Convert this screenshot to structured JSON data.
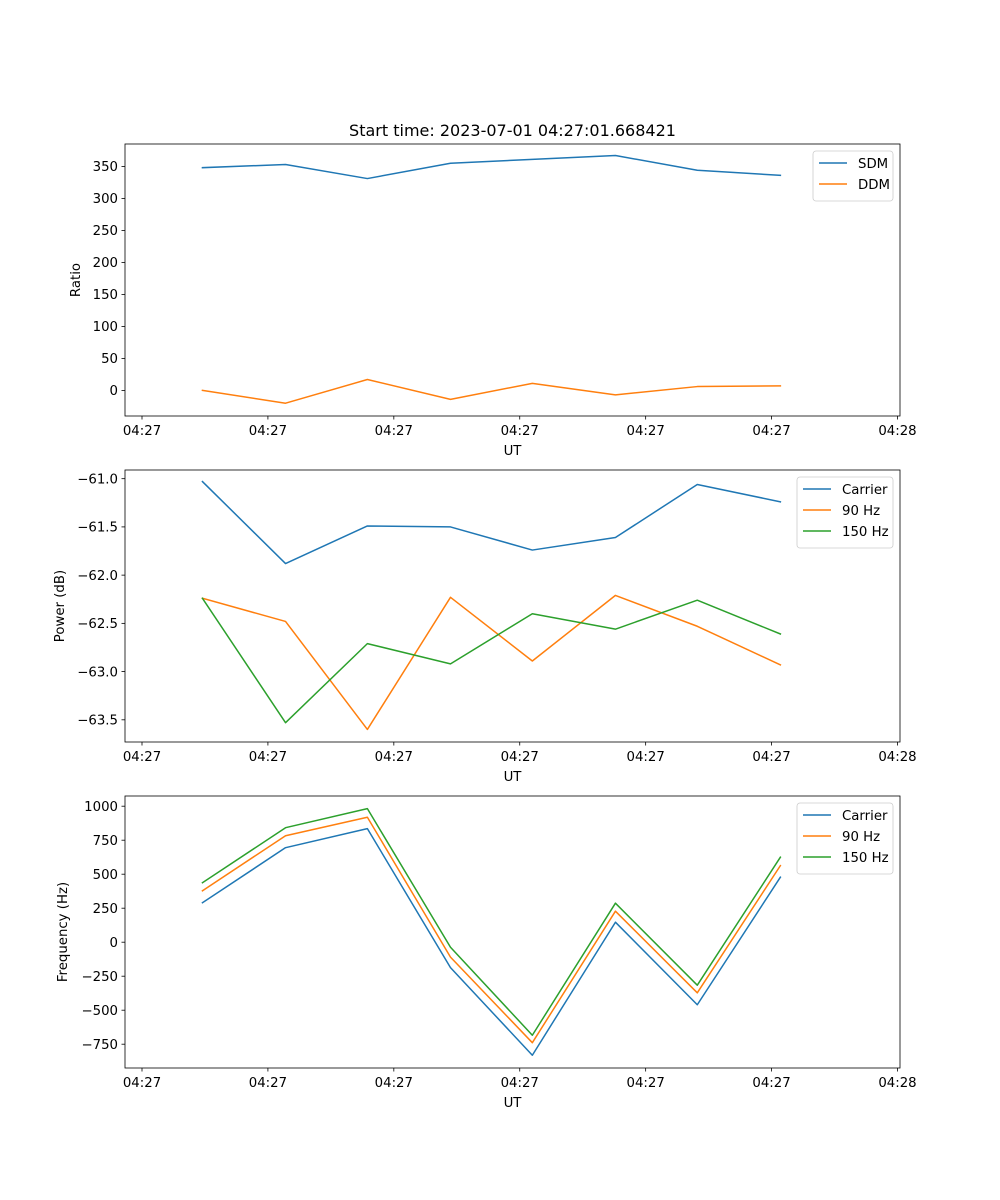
{
  "figure": {
    "title": "Start time: 2023-07-01 04:27:01.668421"
  },
  "colors": {
    "blue": "#1f77b4",
    "orange": "#ff7f0e",
    "green": "#2ca02c"
  },
  "chart_data": [
    {
      "type": "line",
      "title": "Start time: 2023-07-01 04:27:01.668421",
      "xlabel": "UT",
      "ylabel": "Ratio",
      "x_unit": "seconds after 04:27:00 (estimated)",
      "x": [
        4.8,
        11.4,
        17.9,
        24.5,
        31.0,
        37.6,
        44.1,
        50.7
      ],
      "xlim": [
        -1.35,
        60.2
      ],
      "xticks": [
        0,
        10,
        20,
        30,
        40,
        50,
        60
      ],
      "xtick_labels": [
        "04:27",
        "04:27",
        "04:27",
        "04:27",
        "04:27",
        "04:27",
        "04:28"
      ],
      "ylim": [
        -40,
        385
      ],
      "yticks": [
        0,
        50,
        100,
        150,
        200,
        250,
        300,
        350
      ],
      "ytick_labels": [
        "0",
        "50",
        "100",
        "150",
        "200",
        "250",
        "300",
        "350"
      ],
      "grid": false,
      "legend": "top-right",
      "series": [
        {
          "name": "SDM",
          "color": "#1f77b4",
          "values": [
            348,
            353,
            331,
            355,
            361,
            367,
            344,
            336
          ]
        },
        {
          "name": "DDM",
          "color": "#ff7f0e",
          "values": [
            0,
            -20,
            17,
            -14,
            11,
            -7,
            6,
            7
          ]
        }
      ]
    },
    {
      "type": "line",
      "title": "",
      "xlabel": "UT",
      "ylabel": "Power (dB)",
      "x_unit": "seconds after 04:27:00 (estimated)",
      "x": [
        4.8,
        11.4,
        17.9,
        24.5,
        31.0,
        37.6,
        44.1,
        50.7
      ],
      "xlim": [
        -1.35,
        60.2
      ],
      "xticks": [
        0,
        10,
        20,
        30,
        40,
        50,
        60
      ],
      "xtick_labels": [
        "04:27",
        "04:27",
        "04:27",
        "04:27",
        "04:27",
        "04:27",
        "04:28"
      ],
      "ylim": [
        -63.73,
        -60.91
      ],
      "yticks": [
        -61.0,
        -61.5,
        -62.0,
        -62.5,
        -63.0,
        -63.5
      ],
      "ytick_labels": [
        "−61.0",
        "−61.5",
        "−62.0",
        "−62.5",
        "−63.0",
        "−63.5"
      ],
      "grid": false,
      "legend": "top-right",
      "series": [
        {
          "name": "Carrier",
          "color": "#1f77b4",
          "values": [
            -61.03,
            -61.88,
            -61.49,
            -61.5,
            -61.74,
            -61.61,
            -61.06,
            -61.24
          ]
        },
        {
          "name": "90 Hz",
          "color": "#ff7f0e",
          "values": [
            -62.24,
            -62.48,
            -63.6,
            -62.23,
            -62.89,
            -62.21,
            -62.53,
            -62.93
          ]
        },
        {
          "name": "150 Hz",
          "color": "#2ca02c",
          "values": [
            -62.24,
            -63.53,
            -62.71,
            -62.92,
            -62.4,
            -62.56,
            -62.26,
            -62.61
          ]
        }
      ]
    },
    {
      "type": "line",
      "title": "",
      "xlabel": "UT",
      "ylabel": "Frequency (Hz)",
      "x_unit": "seconds after 04:27:00 (estimated)",
      "x": [
        4.8,
        11.4,
        17.9,
        24.5,
        31.0,
        37.6,
        44.1,
        50.7
      ],
      "xlim": [
        -1.35,
        60.2
      ],
      "xticks": [
        0,
        10,
        20,
        30,
        40,
        50,
        60
      ],
      "xtick_labels": [
        "04:27",
        "04:27",
        "04:27",
        "04:27",
        "04:27",
        "04:27",
        "04:28"
      ],
      "ylim": [
        -925,
        1075
      ],
      "yticks": [
        -750,
        -500,
        -250,
        0,
        250,
        500,
        750,
        1000
      ],
      "ytick_labels": [
        "−750",
        "−500",
        "−250",
        "0",
        "250",
        "500",
        "750",
        "1000"
      ],
      "grid": false,
      "legend": "top-right",
      "series": [
        {
          "name": "Carrier",
          "color": "#1f77b4",
          "values": [
            290,
            695,
            835,
            -187,
            -831,
            147,
            -460,
            478
          ]
        },
        {
          "name": "90 Hz",
          "color": "#ff7f0e",
          "values": [
            378,
            783,
            919,
            -110,
            -739,
            228,
            -372,
            563
          ]
        },
        {
          "name": "150 Hz",
          "color": "#2ca02c",
          "values": [
            437,
            842,
            982,
            -37,
            -684,
            287,
            -316,
            625
          ]
        }
      ]
    }
  ]
}
